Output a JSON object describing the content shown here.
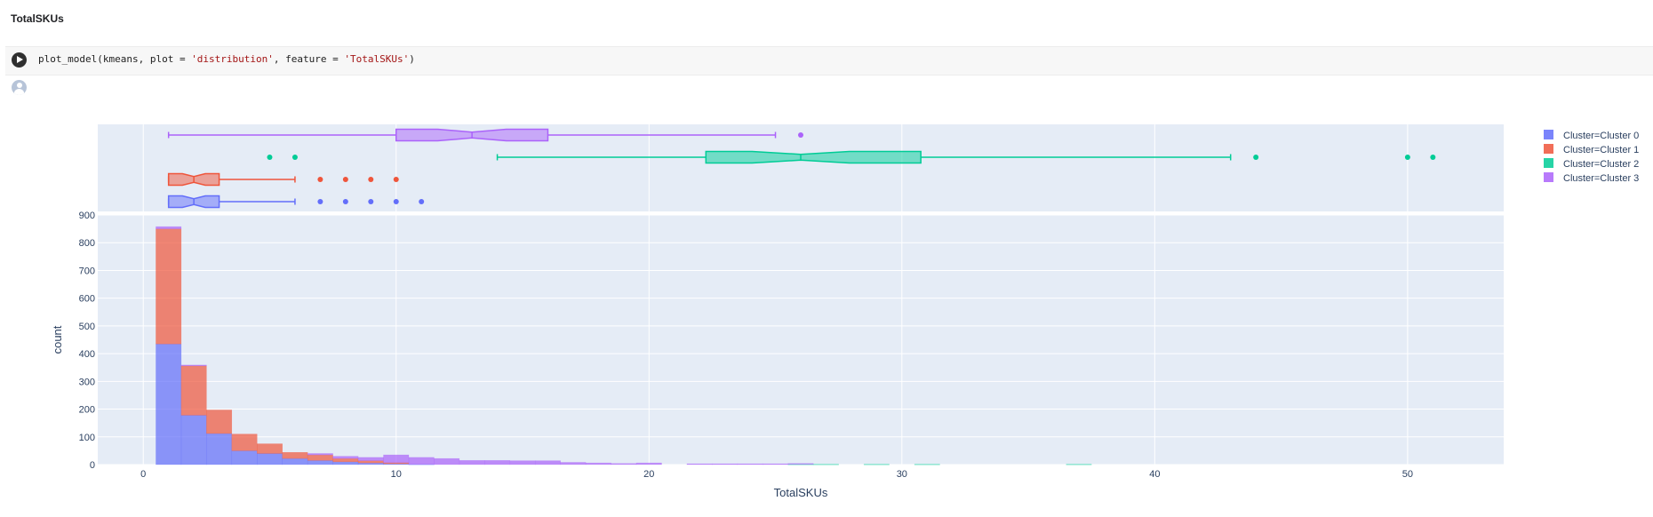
{
  "section": {
    "title": "TotalSKUs"
  },
  "cell": {
    "code_prefix": "plot_model(kmeans, plot = ",
    "code_arg1": "'distribution'",
    "code_mid": ", feature = ",
    "code_arg2": "'TotalSKUs'",
    "code_suffix": ")",
    "run_icon": "play-icon",
    "output_icon": "user-avatar-icon"
  },
  "chart_data": {
    "type": "histogram",
    "xlabel": "TotalSKUs",
    "ylabel": "count",
    "xlim": [
      -1.8,
      53.8
    ],
    "ylim": [
      0,
      900
    ],
    "xticks": [
      0,
      10,
      20,
      30,
      40,
      50
    ],
    "yticks": [
      0,
      100,
      200,
      300,
      400,
      500,
      600,
      700,
      800,
      900
    ],
    "barmode": "stacked",
    "legend_position": "top-right",
    "grid": true,
    "colors": {
      "plot_bg": "#e5ecf6",
      "grid": "#ffffff"
    },
    "bin_width": 1,
    "series": [
      {
        "name": "Cluster=Cluster 0",
        "color": "#636efa",
        "bins": [
          [
            0.5,
            435
          ],
          [
            1.5,
            178
          ],
          [
            2.5,
            112
          ],
          [
            3.5,
            50
          ],
          [
            4.5,
            40
          ],
          [
            5.5,
            22
          ],
          [
            6.5,
            15
          ],
          [
            7.5,
            10
          ],
          [
            8.5,
            6
          ],
          [
            9.5,
            3
          ],
          [
            10.5,
            1
          ]
        ]
      },
      {
        "name": "Cluster=Cluster 1",
        "color": "#ef553b",
        "bins": [
          [
            0.5,
            415
          ],
          [
            1.5,
            178
          ],
          [
            2.5,
            85
          ],
          [
            3.5,
            60
          ],
          [
            4.5,
            35
          ],
          [
            5.5,
            22
          ],
          [
            6.5,
            20
          ],
          [
            7.5,
            12
          ],
          [
            8.5,
            8
          ],
          [
            9.5,
            4
          ]
        ]
      },
      {
        "name": "Cluster=Cluster 2",
        "color": "#00cc96",
        "bins": [
          [
            25.5,
            1
          ],
          [
            26.5,
            1
          ],
          [
            28.5,
            1
          ],
          [
            30.5,
            1
          ],
          [
            36.5,
            1
          ]
        ]
      },
      {
        "name": "Cluster=Cluster 3",
        "color": "#ab63fa",
        "bins": [
          [
            0.5,
            8
          ],
          [
            1.5,
            3
          ],
          [
            6.5,
            5
          ],
          [
            7.5,
            8
          ],
          [
            8.5,
            12
          ],
          [
            9.5,
            28
          ],
          [
            10.5,
            25
          ],
          [
            11.5,
            22
          ],
          [
            12.5,
            15
          ],
          [
            13.5,
            15
          ],
          [
            14.5,
            14
          ],
          [
            15.5,
            14
          ],
          [
            16.5,
            8
          ],
          [
            17.5,
            6
          ],
          [
            18.5,
            4
          ],
          [
            19.5,
            6
          ],
          [
            21.5,
            3
          ],
          [
            22.5,
            3
          ],
          [
            23.5,
            3
          ],
          [
            24.5,
            3
          ],
          [
            25.5,
            3
          ]
        ]
      }
    ],
    "boxes": [
      {
        "name": "Cluster=Cluster 0",
        "color": "#636efa",
        "min": 1,
        "q1": 1,
        "median": 2,
        "q3": 3,
        "max": 6,
        "outliers": [
          7,
          8,
          9,
          10,
          11
        ]
      },
      {
        "name": "Cluster=Cluster 1",
        "color": "#ef553b",
        "min": 1,
        "q1": 1,
        "median": 2,
        "q3": 3,
        "max": 6,
        "outliers": [
          7,
          8,
          9,
          10
        ]
      },
      {
        "name": "Cluster=Cluster 2",
        "color": "#00cc96",
        "min": 14,
        "q1": 22.25,
        "median": 26,
        "q3": 30.75,
        "max": 43,
        "outliers": [
          5,
          6,
          44,
          50,
          51
        ]
      },
      {
        "name": "Cluster=Cluster 3",
        "color": "#ab63fa",
        "min": 1,
        "q1": 10,
        "median": 13,
        "q3": 16,
        "max": 25,
        "outliers": [
          26
        ]
      }
    ]
  }
}
